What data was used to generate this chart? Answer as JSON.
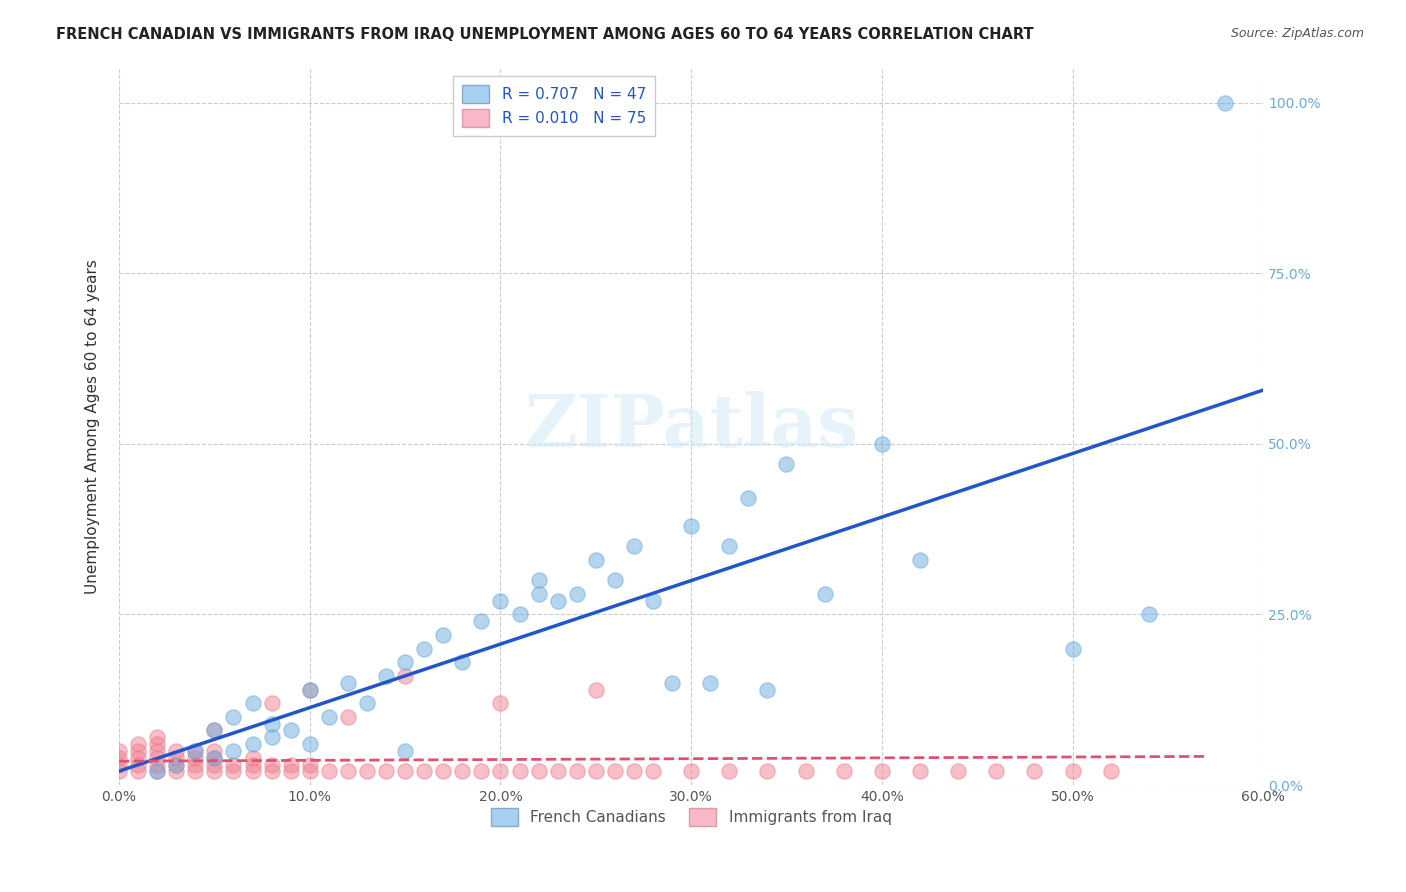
{
  "title": "FRENCH CANADIAN VS IMMIGRANTS FROM IRAQ UNEMPLOYMENT AMONG AGES 60 TO 64 YEARS CORRELATION CHART",
  "source": "Source: ZipAtlas.com",
  "xlabel_bottom": "",
  "ylabel": "Unemployment Among Ages 60 to 64 years",
  "x_ticklabels": [
    "0.0%",
    "10.0%",
    "20.0%",
    "30.0%",
    "40.0%",
    "50.0%",
    "60.0%"
  ],
  "x_ticks": [
    0,
    0.1,
    0.2,
    0.3,
    0.4,
    0.5,
    0.6
  ],
  "y_ticklabels_right": [
    "0.0%",
    "25.0%",
    "50.0%",
    "75.0%",
    "100.0%"
  ],
  "y_ticks": [
    0,
    0.25,
    0.5,
    0.75,
    1.0
  ],
  "xlim": [
    0,
    0.6
  ],
  "ylim": [
    0,
    1.05
  ],
  "legend_entries": [
    {
      "label": "R = 0.707   N = 47",
      "color": "#a8c8f0"
    },
    {
      "label": "R = 0.010   N = 75",
      "color": "#f4a8b8"
    }
  ],
  "legend_label_french": "French Canadians",
  "legend_label_iraq": "Immigrants from Iraq",
  "watermark": "ZIPatlas",
  "french_color": "#6aacdc",
  "iraq_color": "#f08090",
  "trendline_french_color": "#2255cc",
  "trendline_iraq_color": "#e05070",
  "background_color": "#ffffff",
  "grid_color": "#cccccc",
  "right_tick_color": "#6aacdc",
  "french_canadians_x": [
    0.02,
    0.03,
    0.04,
    0.05,
    0.05,
    0.06,
    0.06,
    0.07,
    0.07,
    0.08,
    0.08,
    0.09,
    0.1,
    0.1,
    0.11,
    0.12,
    0.13,
    0.14,
    0.15,
    0.15,
    0.16,
    0.17,
    0.18,
    0.19,
    0.2,
    0.21,
    0.22,
    0.22,
    0.23,
    0.24,
    0.25,
    0.26,
    0.27,
    0.28,
    0.29,
    0.3,
    0.31,
    0.32,
    0.33,
    0.34,
    0.35,
    0.37,
    0.4,
    0.42,
    0.5,
    0.54,
    0.58
  ],
  "french_canadians_y": [
    0.02,
    0.03,
    0.05,
    0.04,
    0.08,
    0.05,
    0.1,
    0.06,
    0.12,
    0.07,
    0.09,
    0.08,
    0.06,
    0.14,
    0.1,
    0.15,
    0.12,
    0.16,
    0.18,
    0.05,
    0.2,
    0.22,
    0.18,
    0.24,
    0.27,
    0.25,
    0.28,
    0.3,
    0.27,
    0.28,
    0.33,
    0.3,
    0.35,
    0.27,
    0.15,
    0.38,
    0.15,
    0.35,
    0.42,
    0.14,
    0.47,
    0.28,
    0.5,
    0.33,
    0.2,
    0.25,
    1.0
  ],
  "iraq_x": [
    0.0,
    0.0,
    0.0,
    0.0,
    0.01,
    0.01,
    0.01,
    0.01,
    0.01,
    0.02,
    0.02,
    0.02,
    0.02,
    0.02,
    0.02,
    0.03,
    0.03,
    0.03,
    0.03,
    0.04,
    0.04,
    0.04,
    0.04,
    0.05,
    0.05,
    0.05,
    0.05,
    0.06,
    0.06,
    0.07,
    0.07,
    0.07,
    0.08,
    0.08,
    0.09,
    0.09,
    0.1,
    0.1,
    0.11,
    0.12,
    0.13,
    0.14,
    0.15,
    0.16,
    0.17,
    0.18,
    0.19,
    0.2,
    0.21,
    0.22,
    0.23,
    0.24,
    0.25,
    0.26,
    0.27,
    0.28,
    0.3,
    0.32,
    0.34,
    0.36,
    0.38,
    0.4,
    0.42,
    0.44,
    0.46,
    0.48,
    0.5,
    0.52,
    0.05,
    0.08,
    0.1,
    0.12,
    0.15,
    0.2,
    0.25
  ],
  "iraq_y": [
    0.02,
    0.03,
    0.04,
    0.05,
    0.02,
    0.03,
    0.04,
    0.05,
    0.06,
    0.02,
    0.03,
    0.04,
    0.05,
    0.06,
    0.07,
    0.02,
    0.03,
    0.04,
    0.05,
    0.02,
    0.03,
    0.04,
    0.05,
    0.02,
    0.03,
    0.04,
    0.05,
    0.02,
    0.03,
    0.02,
    0.03,
    0.04,
    0.02,
    0.03,
    0.02,
    0.03,
    0.02,
    0.03,
    0.02,
    0.02,
    0.02,
    0.02,
    0.02,
    0.02,
    0.02,
    0.02,
    0.02,
    0.02,
    0.02,
    0.02,
    0.02,
    0.02,
    0.02,
    0.02,
    0.02,
    0.02,
    0.02,
    0.02,
    0.02,
    0.02,
    0.02,
    0.02,
    0.02,
    0.02,
    0.02,
    0.02,
    0.02,
    0.02,
    0.08,
    0.12,
    0.14,
    0.1,
    0.16,
    0.12,
    0.14
  ]
}
